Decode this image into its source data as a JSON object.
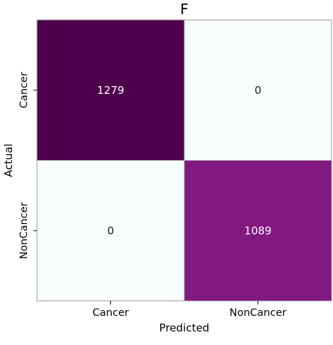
{
  "chart_data": {
    "type": "heatmap",
    "title": "F",
    "xlabel": "Predicted",
    "ylabel": "Actual",
    "x_categories": [
      "Cancer",
      "NonCancer"
    ],
    "y_categories": [
      "Cancer",
      "NonCancer"
    ],
    "values": [
      [
        1279,
        0
      ],
      [
        0,
        1089
      ]
    ],
    "color_scale": {
      "min": 0,
      "max": 1279,
      "low": "#f7fcfd",
      "high": "#4d004b",
      "colormap": "BuPu"
    },
    "grid": false,
    "legend": "none"
  }
}
